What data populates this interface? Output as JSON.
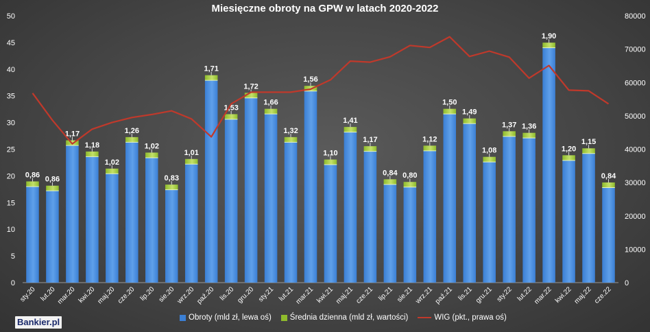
{
  "chart_data": {
    "type": "bar",
    "title": "Miesięczne obroty na GPW w latach 2020-2022",
    "categories": [
      "sty.20",
      "lut.20",
      "mar.20",
      "kwi.20",
      "maj.20",
      "cze.20",
      "lip.20",
      "sie.20",
      "wrz.20",
      "paź.20",
      "lis.20",
      "gru.20",
      "sty.21",
      "lut.21",
      "mar.21",
      "kwi.21",
      "maj.21",
      "cze.21",
      "lip.21",
      "sie.21",
      "wrz.21",
      "paź.21",
      "lis.21",
      "gru.21",
      "sty.22",
      "lut.22",
      "mar.22",
      "kwi.22",
      "maj.22",
      "cze.22"
    ],
    "series": [
      {
        "name": "Obroty (mld zł, lewa oś)",
        "values": [
          18.0,
          17.2,
          25.7,
          23.6,
          20.4,
          26.3,
          23.4,
          17.4,
          22.2,
          37.9,
          30.6,
          34.6,
          31.6,
          26.3,
          35.9,
          22.1,
          28.2,
          24.6,
          18.4,
          17.9,
          24.7,
          31.6,
          29.8,
          22.6,
          27.4,
          27.1,
          44.0,
          22.9,
          24.2,
          17.8
        ]
      },
      {
        "name": "Średnia dzienna (mld zł, wartości)",
        "values": [
          0.86,
          0.86,
          1.17,
          1.18,
          1.02,
          1.26,
          1.02,
          0.83,
          1.01,
          1.71,
          1.53,
          1.72,
          1.66,
          1.32,
          1.56,
          1.1,
          1.41,
          1.17,
          0.84,
          0.8,
          1.12,
          1.5,
          1.49,
          1.08,
          1.37,
          1.36,
          1.9,
          1.2,
          1.15,
          0.84
        ],
        "labels": [
          "0,86",
          "0,86",
          "1,17",
          "1,18",
          "1,02",
          "1,26",
          "1,02",
          "0,83",
          "1,01",
          "1,71",
          "1,53",
          "1,72",
          "1,66",
          "1,32",
          "1,56",
          "1,10",
          "1,41",
          "1,17",
          "0,84",
          "0,80",
          "1,12",
          "1,50",
          "1,49",
          "1,08",
          "1,37",
          "1,36",
          "1,90",
          "1,20",
          "1,15",
          "0,84"
        ]
      },
      {
        "name": "WIG (pkt., prawa oś)",
        "axis": "right",
        "values": [
          56800,
          48700,
          41600,
          46000,
          48000,
          49500,
          50400,
          51500,
          49100,
          43700,
          53600,
          57100,
          57100,
          57100,
          58000,
          60800,
          66400,
          66100,
          67700,
          71100,
          70500,
          73700,
          67800,
          69400,
          67600,
          61300,
          65100,
          57700,
          57500,
          53600
        ]
      }
    ],
    "y_left": {
      "min": 0,
      "max": 50,
      "ticks": [
        "0",
        "5",
        "10",
        "15",
        "20",
        "25",
        "30",
        "35",
        "40",
        "45",
        "50"
      ]
    },
    "y_right": {
      "min": 0,
      "max": 80000,
      "ticks": [
        "0",
        "10000",
        "20000",
        "30000",
        "40000",
        "50000",
        "60000",
        "70000",
        "80000"
      ]
    },
    "grid": false,
    "legend_position": "bottom",
    "colors": {
      "bar": "#3b7fd4",
      "bar_highlight": "#5fa0ea",
      "cap": "#8fbb2c",
      "cap_highlight": "#c3e06a",
      "line": "#c0392b",
      "text": "#ffffff"
    }
  },
  "brand": {
    "logo_text": "Bankier.pl"
  }
}
